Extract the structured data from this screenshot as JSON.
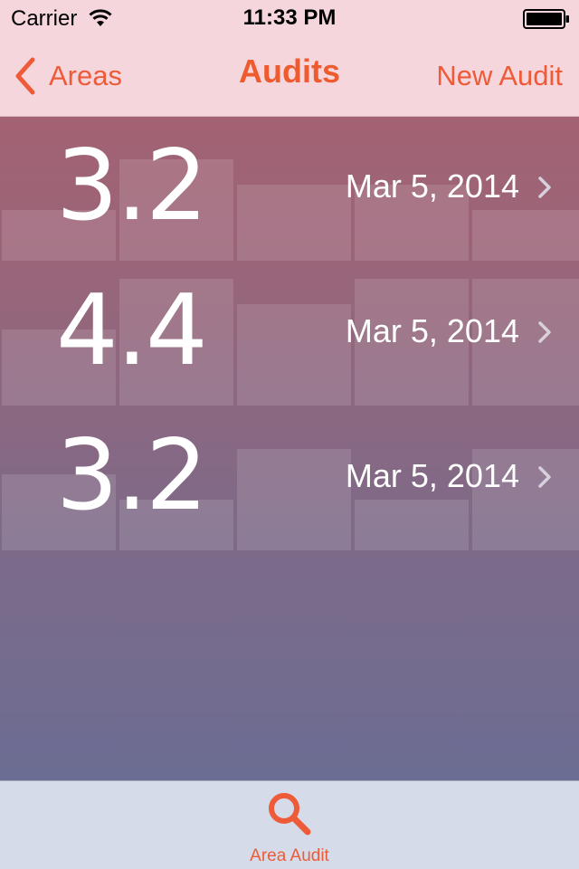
{
  "status_bar": {
    "carrier": "Carrier",
    "time": "11:33 PM"
  },
  "nav": {
    "back_label": "Areas",
    "title": "Audits",
    "new_audit_label": "New Audit"
  },
  "audits": [
    {
      "score": "3.2",
      "date": "Mar 5, 2014"
    },
    {
      "score": "4.4",
      "date": "Mar 5, 2014"
    },
    {
      "score": "3.2",
      "date": "Mar 5, 2014"
    }
  ],
  "tab_bar": {
    "items": [
      {
        "label": "Area Audit",
        "icon": "search-icon"
      }
    ]
  },
  "colors": {
    "accent": "#ee5b38",
    "nav_background": "#f5d6dc",
    "tab_background": "#d6dbea",
    "gradient_top": "#a9606f",
    "gradient_bottom": "#656e97"
  }
}
